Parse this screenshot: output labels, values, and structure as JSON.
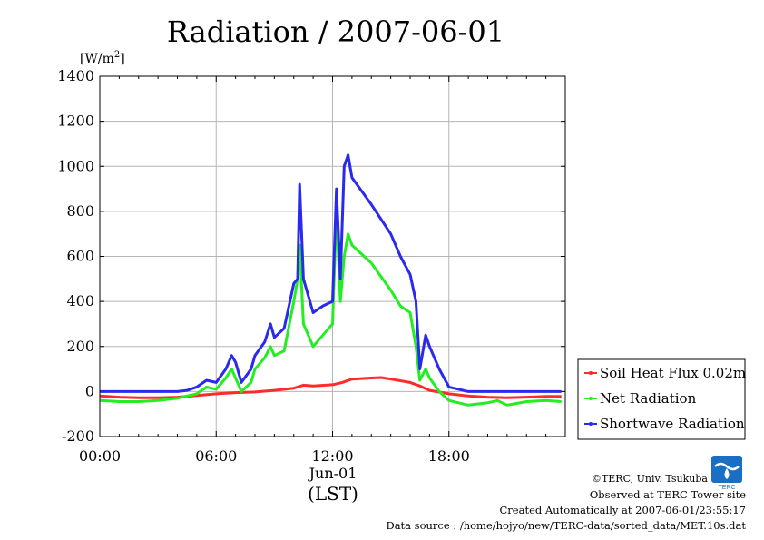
{
  "chart_data": {
    "type": "line",
    "title": "Radiation / 2007-06-01",
    "ylabel": "[W/m2]",
    "ylabel_parts": {
      "base": "[W/m",
      "sup": "2",
      "close": "]"
    },
    "xlabel": "(LST)",
    "date_label": "Jun-01",
    "xlim": [
      0,
      24
    ],
    "ylim": [
      -200,
      1400
    ],
    "y_ticks": [
      -200,
      0,
      200,
      400,
      600,
      800,
      1000,
      1200,
      1400
    ],
    "x_ticks": [
      {
        "hour": 0,
        "label": "00:00"
      },
      {
        "hour": 6,
        "label": "06:00"
      },
      {
        "hour": 12,
        "label": "12:00"
      },
      {
        "hour": 18,
        "label": "18:00"
      }
    ],
    "grid": true,
    "legend_position": "right",
    "series": [
      {
        "name": "Soil Heat Flux 0.02m",
        "color": "#ff2a2a",
        "points": [
          [
            0,
            -20
          ],
          [
            1,
            -25
          ],
          [
            2,
            -28
          ],
          [
            3,
            -28
          ],
          [
            4,
            -25
          ],
          [
            5,
            -18
          ],
          [
            6,
            -10
          ],
          [
            7,
            -5
          ],
          [
            8,
            -2
          ],
          [
            9,
            5
          ],
          [
            10,
            15
          ],
          [
            10.5,
            28
          ],
          [
            11,
            25
          ],
          [
            12,
            30
          ],
          [
            12.5,
            40
          ],
          [
            13,
            55
          ],
          [
            14,
            60
          ],
          [
            14.5,
            62
          ],
          [
            15,
            55
          ],
          [
            16,
            40
          ],
          [
            16.5,
            25
          ],
          [
            17,
            5
          ],
          [
            18,
            -10
          ],
          [
            19,
            -20
          ],
          [
            20,
            -25
          ],
          [
            21,
            -28
          ],
          [
            22,
            -25
          ],
          [
            23,
            -22
          ],
          [
            23.8,
            -22
          ]
        ]
      },
      {
        "name": "Net Radiation",
        "color": "#22ee22",
        "points": [
          [
            0,
            -40
          ],
          [
            1,
            -45
          ],
          [
            2,
            -45
          ],
          [
            3,
            -40
          ],
          [
            4,
            -30
          ],
          [
            4.5,
            -20
          ],
          [
            5,
            -10
          ],
          [
            5.5,
            20
          ],
          [
            6,
            10
          ],
          [
            6.5,
            60
          ],
          [
            6.8,
            100
          ],
          [
            7,
            60
          ],
          [
            7.3,
            0
          ],
          [
            7.8,
            40
          ],
          [
            8,
            100
          ],
          [
            8.5,
            150
          ],
          [
            8.8,
            200
          ],
          [
            9,
            160
          ],
          [
            9.5,
            180
          ],
          [
            10,
            400
          ],
          [
            10.2,
            500
          ],
          [
            10.3,
            650
          ],
          [
            10.5,
            300
          ],
          [
            11,
            200
          ],
          [
            11.5,
            250
          ],
          [
            12,
            300
          ],
          [
            12.2,
            800
          ],
          [
            12.4,
            400
          ],
          [
            12.6,
            600
          ],
          [
            12.8,
            700
          ],
          [
            13,
            650
          ],
          [
            14,
            570
          ],
          [
            15,
            450
          ],
          [
            15.5,
            380
          ],
          [
            16,
            350
          ],
          [
            16.3,
            200
          ],
          [
            16.5,
            50
          ],
          [
            16.8,
            100
          ],
          [
            17,
            60
          ],
          [
            17.5,
            0
          ],
          [
            18,
            -40
          ],
          [
            19,
            -60
          ],
          [
            20,
            -50
          ],
          [
            20.5,
            -40
          ],
          [
            21,
            -60
          ],
          [
            22,
            -45
          ],
          [
            23,
            -40
          ],
          [
            23.8,
            -45
          ]
        ]
      },
      {
        "name": "Shortwave Radiation",
        "color": "#2a2aee",
        "points": [
          [
            0,
            0
          ],
          [
            1,
            0
          ],
          [
            2,
            0
          ],
          [
            3,
            0
          ],
          [
            4,
            0
          ],
          [
            4.5,
            5
          ],
          [
            5,
            20
          ],
          [
            5.5,
            50
          ],
          [
            6,
            40
          ],
          [
            6.5,
            100
          ],
          [
            6.8,
            160
          ],
          [
            7,
            130
          ],
          [
            7.3,
            40
          ],
          [
            7.8,
            100
          ],
          [
            8,
            160
          ],
          [
            8.5,
            220
          ],
          [
            8.8,
            300
          ],
          [
            9,
            240
          ],
          [
            9.5,
            280
          ],
          [
            10,
            480
          ],
          [
            10.2,
            500
          ],
          [
            10.3,
            920
          ],
          [
            10.5,
            500
          ],
          [
            11,
            350
          ],
          [
            11.5,
            380
          ],
          [
            12,
            400
          ],
          [
            12.2,
            900
          ],
          [
            12.4,
            500
          ],
          [
            12.6,
            1000
          ],
          [
            12.8,
            1050
          ],
          [
            13,
            950
          ],
          [
            14,
            830
          ],
          [
            15,
            700
          ],
          [
            15.5,
            600
          ],
          [
            16,
            520
          ],
          [
            16.3,
            400
          ],
          [
            16.5,
            100
          ],
          [
            16.8,
            250
          ],
          [
            17,
            200
          ],
          [
            17.5,
            100
          ],
          [
            18,
            20
          ],
          [
            19,
            0
          ],
          [
            20,
            0
          ],
          [
            21,
            0
          ],
          [
            22,
            0
          ],
          [
            23,
            0
          ],
          [
            23.8,
            0
          ]
        ]
      }
    ]
  },
  "footer": {
    "credit": "©TERC, Univ. Tsukuba",
    "site": "Observed at TERC Tower site",
    "created": "Created Automatically at 2007-06-01/23:55:17",
    "source": "Data source : /home/hojyo/new/TERC-data/sorted_data/MET.10s.dat"
  },
  "logo": {
    "text": "TERC",
    "color": "#1a6fc4"
  }
}
